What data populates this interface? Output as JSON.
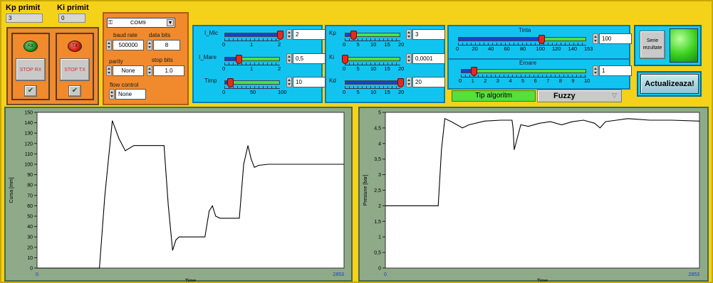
{
  "kp_primit": {
    "label": "Kp primit",
    "value": "3"
  },
  "ki_primit": {
    "label": "Ki primit",
    "value": "0"
  },
  "rx": {
    "led": "RX",
    "button": "STOP RX"
  },
  "tx": {
    "led": "TX",
    "button": "STOP TX"
  },
  "serial": {
    "port": "COM9",
    "baud_rate_label": "baud rate",
    "baud_rate": "500000",
    "data_bits_label": "data bits",
    "data_bits": "8",
    "parity_label": "parity",
    "parity": "None",
    "stop_bits_label": "stop bits",
    "stop_bits": "1.0",
    "flow_label": "flow control",
    "flow": "None"
  },
  "sliders_a": {
    "i_mic": {
      "label": "I_Mic",
      "value": "2",
      "ticks": [
        "0",
        "1",
        "2"
      ],
      "level": 1.0
    },
    "i_mare": {
      "label": "I_Mare",
      "value": "0,5",
      "ticks": [
        "0",
        "1",
        "2"
      ],
      "level": 0.25
    },
    "timp": {
      "label": "Timp",
      "value": "10",
      "ticks": [
        "0",
        "50",
        "100"
      ],
      "level": 0.1
    }
  },
  "sliders_b": {
    "kp": {
      "label": "Kp",
      "value": "3",
      "ticks": [
        "0",
        "5",
        "10",
        "15",
        "20"
      ],
      "level": 0.15
    },
    "ki": {
      "label": "Ki",
      "value": "0,0001",
      "ticks": [
        "0",
        "5",
        "10",
        "15",
        "20"
      ],
      "level": 0.0
    },
    "kd": {
      "label": "Kd",
      "value": "20",
      "ticks": [
        "0",
        "5",
        "10",
        "15",
        "20"
      ],
      "level": 1.0
    }
  },
  "tinta": {
    "label": "Tinta",
    "value": "100",
    "ticks": [
      "0",
      "20",
      "40",
      "60",
      "80",
      "100",
      "120",
      "140",
      "153"
    ],
    "level": 0.65
  },
  "eroare": {
    "label": "Eroare",
    "value": "1",
    "ticks": [
      "0",
      "1",
      "2",
      "3",
      "4",
      "5",
      "6",
      "7",
      "8",
      "9",
      "10"
    ],
    "level": 0.1
  },
  "algoritm": {
    "label": "Tip algoritm",
    "value": "Fuzzy"
  },
  "serie_button": "Serie\nrezultate",
  "update_button": "Actualizeaza!",
  "colors": {
    "frame": "#f5d21a",
    "blue_panel": "#11c4f0",
    "orange_panel": "#f08a2c",
    "chart_bg": "#8faa89",
    "led_green": "#22cc22"
  },
  "chart_data": [
    {
      "type": "line",
      "ylabel": "Cursa [mm]",
      "xlabel": "Time",
      "x_ticks": [
        "0",
        "2853"
      ],
      "ylim": [
        0,
        150
      ],
      "xlim": [
        0,
        2853
      ],
      "y_ticks": [
        "0",
        "10",
        "20",
        "30",
        "40",
        "50",
        "60",
        "70",
        "80",
        "90",
        "100",
        "110",
        "120",
        "130",
        "140",
        "150"
      ],
      "grid": false,
      "series": [
        {
          "x": [
            0,
            580,
            630,
            700,
            760,
            820,
            900,
            1000,
            1080,
            1180,
            1220,
            1260,
            1290,
            1320,
            1380,
            1480,
            1560,
            1600,
            1630,
            1660,
            1700,
            1780,
            1880,
            1920,
            1960,
            1990,
            2020,
            2060,
            2150,
            2300,
            2500,
            2853
          ],
          "y": [
            0,
            0,
            70,
            142,
            125,
            113,
            118,
            118,
            118,
            118,
            60,
            17,
            27,
            30,
            30,
            30,
            30,
            55,
            60,
            50,
            48,
            48,
            48,
            100,
            118,
            105,
            97,
            99,
            100,
            100,
            100,
            100
          ]
        }
      ]
    },
    {
      "type": "line",
      "ylabel": "Presiune [bar]",
      "xlabel": "Time",
      "x_ticks": [
        "0",
        "2853"
      ],
      "ylim": [
        0,
        5
      ],
      "xlim": [
        0,
        2853
      ],
      "y_ticks": [
        "0",
        "0,5",
        "1",
        "1,5",
        "2",
        "2,5",
        "3",
        "3,5",
        "4",
        "4,5",
        "5"
      ],
      "grid": false,
      "series": [
        {
          "x": [
            0,
            480,
            510,
            540,
            600,
            700,
            760,
            900,
            1050,
            1150,
            1160,
            1170,
            1230,
            1300,
            1400,
            1500,
            1600,
            1700,
            1800,
            1900,
            1950,
            2000,
            2100,
            2200,
            2400,
            2600,
            2853
          ],
          "y": [
            2,
            2,
            3.8,
            4.8,
            4.7,
            4.5,
            4.6,
            4.72,
            4.75,
            4.75,
            4.5,
            3.8,
            4.6,
            4.55,
            4.65,
            4.7,
            4.6,
            4.7,
            4.75,
            4.65,
            4.5,
            4.7,
            4.75,
            4.8,
            4.75,
            4.75,
            4.72
          ]
        }
      ]
    }
  ]
}
